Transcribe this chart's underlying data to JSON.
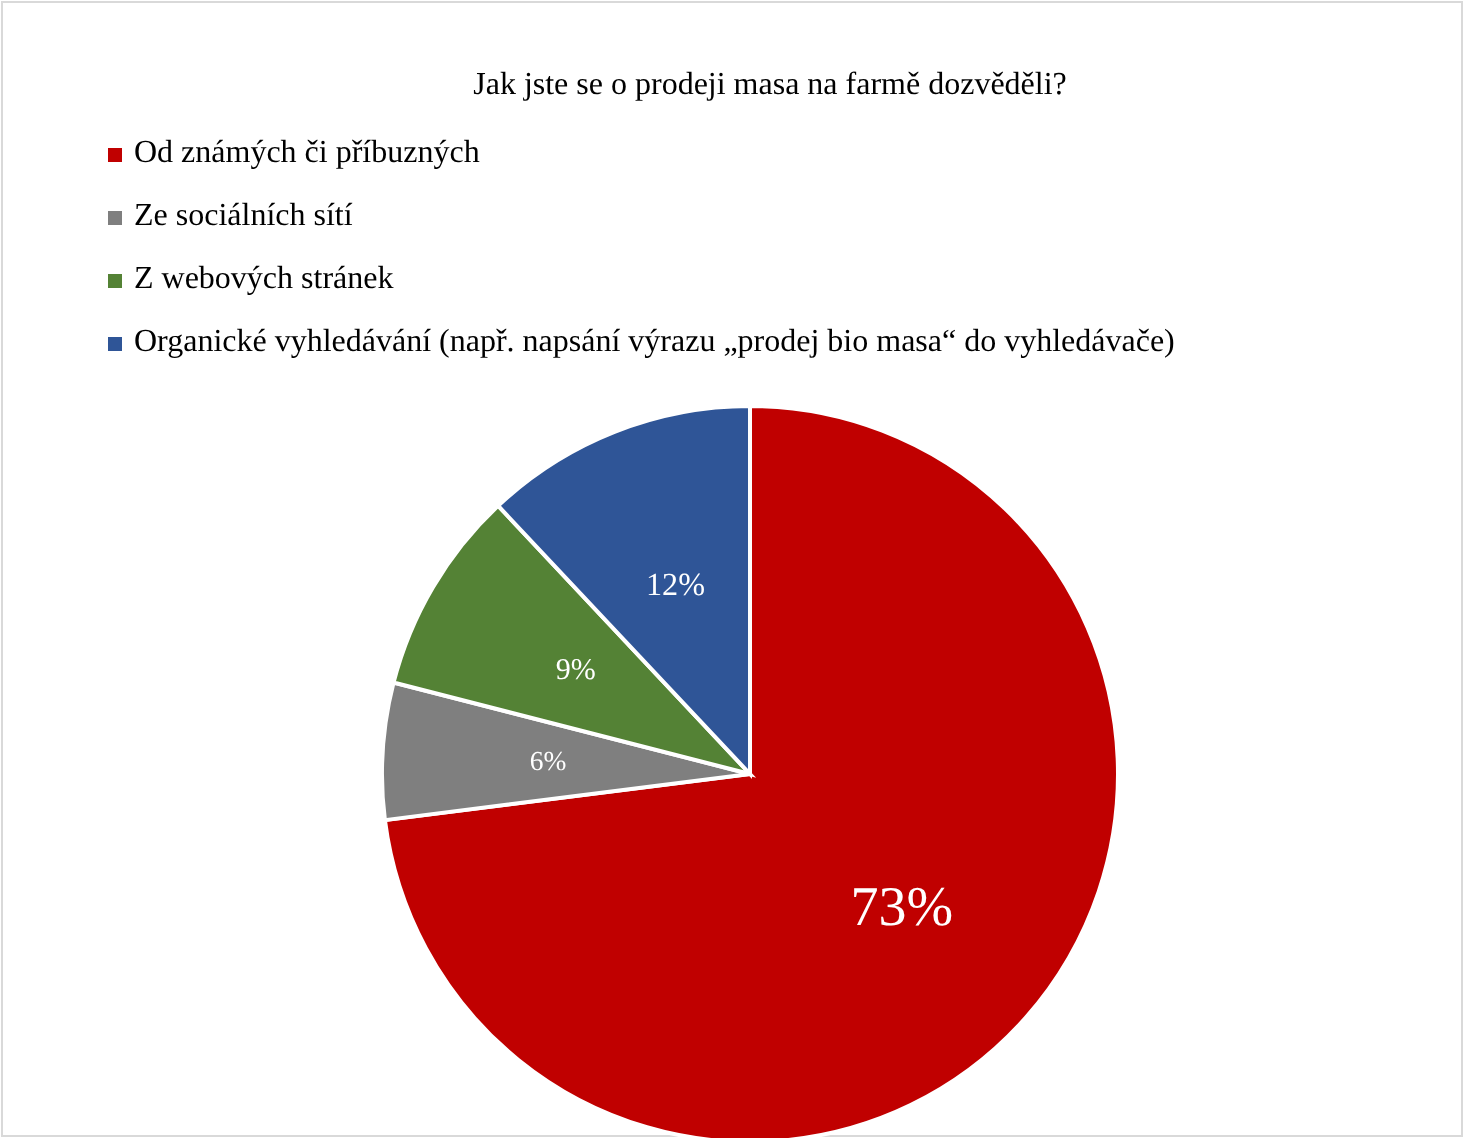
{
  "chart_data": {
    "type": "pie",
    "title": "Jak jste se o prodeji masa na farmě dozvěděli?",
    "categories": [
      "Od známých či příbuzných",
      "Ze sociálních sítí",
      "Z webových stránek",
      "Organické vyhledávání (např. napsání výrazu „prodej bio masa“ do vyhledávače)"
    ],
    "values": [
      73,
      6,
      9,
      12
    ],
    "colors": [
      "#c00000",
      "#7f7f7f",
      "#548235",
      "#2f5597"
    ],
    "value_labels": [
      "73%",
      "6%",
      "9%",
      "12%"
    ],
    "legend": "top left"
  }
}
